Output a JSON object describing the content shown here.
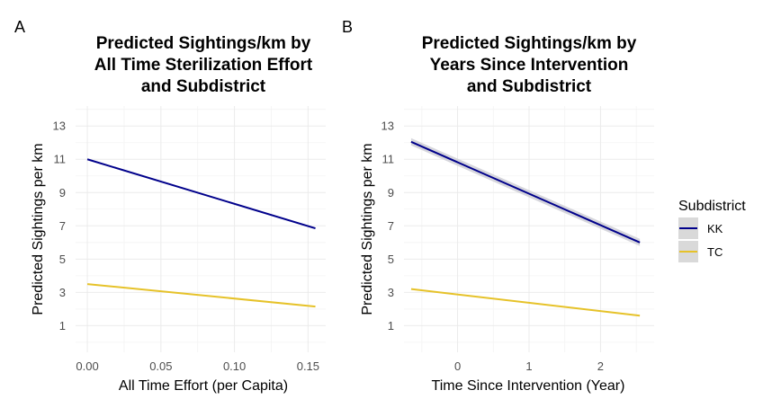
{
  "chart_data": [
    {
      "type": "line",
      "panel": "A",
      "title": [
        "Predicted Sightings/km by",
        "All Time Sterilization Effort",
        "and Subdistrict"
      ],
      "xlabel": "All Time Effort (per Capita)",
      "ylabel": "Predicted Sightings per km",
      "xlim": [
        -0.008,
        0.162
      ],
      "ylim": [
        -0.6,
        14.2
      ],
      "xticks": [
        0.0,
        0.05,
        0.1,
        0.15
      ],
      "xtick_labels": [
        "0.00",
        "0.05",
        "0.10",
        "0.15"
      ],
      "yticks": [
        1,
        3,
        5,
        7,
        9,
        11,
        13
      ],
      "ytick_labels": [
        "1",
        "3",
        "5",
        "7",
        "9",
        "11",
        "13"
      ],
      "grid": true,
      "series": [
        {
          "name": "KK",
          "color": "#00008b",
          "band": false,
          "x": [
            0.0,
            0.155
          ],
          "y": [
            11.0,
            6.85
          ]
        },
        {
          "name": "TC",
          "color": "#e6c229",
          "band": false,
          "x": [
            0.0,
            0.155
          ],
          "y": [
            3.5,
            2.15
          ]
        }
      ]
    },
    {
      "type": "line",
      "panel": "B",
      "title": [
        "Predicted Sightings/km by",
        "Years Since Intervention",
        "and Subdistrict"
      ],
      "xlabel": "Time Since Intervention (Year)",
      "ylabel": "Predicted Sightings per km",
      "xlim": [
        -0.75,
        2.75
      ],
      "ylim": [
        -0.6,
        14.2
      ],
      "xticks": [
        0,
        1,
        2
      ],
      "xtick_labels": [
        "0",
        "1",
        "2"
      ],
      "yticks": [
        1,
        3,
        5,
        7,
        9,
        11,
        13
      ],
      "ytick_labels": [
        "1",
        "3",
        "5",
        "7",
        "9",
        "11",
        "13"
      ],
      "grid": true,
      "series": [
        {
          "name": "KK",
          "color": "#00008b",
          "band": true,
          "x": [
            -0.65,
            2.55
          ],
          "y": [
            12.05,
            6.0
          ]
        },
        {
          "name": "TC",
          "color": "#e6c229",
          "band": false,
          "x": [
            -0.65,
            2.55
          ],
          "y": [
            3.2,
            1.6
          ]
        }
      ]
    }
  ],
  "legend": {
    "title": "Subdistrict",
    "placement": "right",
    "entries": [
      {
        "label": "KK",
        "color": "#00008b"
      },
      {
        "label": "TC",
        "color": "#e6c229"
      }
    ]
  }
}
